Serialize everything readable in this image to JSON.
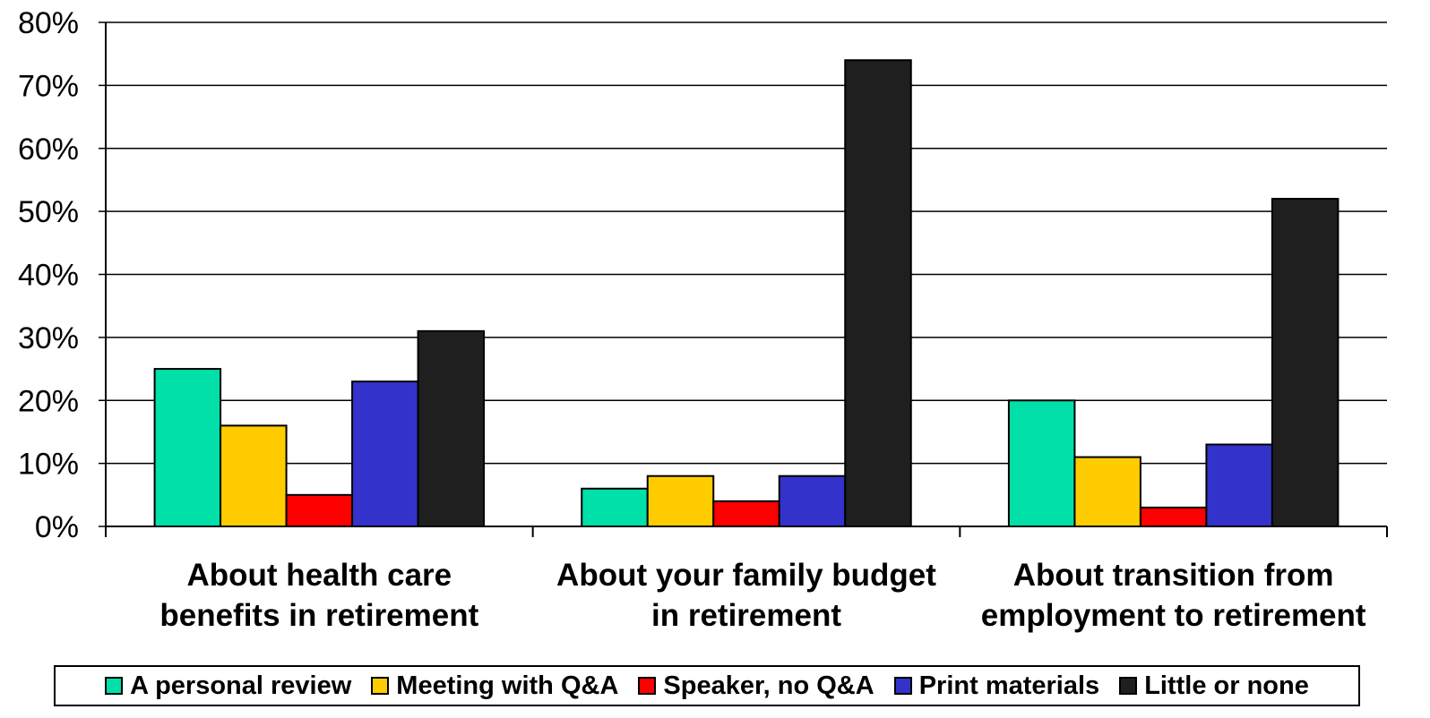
{
  "chart_data": {
    "type": "bar",
    "title": "",
    "xlabel": "",
    "ylabel": "",
    "ylim": [
      0,
      80
    ],
    "y_ticks": [
      "0%",
      "10%",
      "20%",
      "30%",
      "40%",
      "50%",
      "60%",
      "70%",
      "80%"
    ],
    "y_tick_values": [
      0,
      10,
      20,
      30,
      40,
      50,
      60,
      70,
      80
    ],
    "grid": true,
    "legend_position": "bottom",
    "categories": [
      [
        "About health care",
        "benefits in retirement"
      ],
      [
        "About your family budget",
        "in retirement"
      ],
      [
        "About transition from",
        "employment to retirement"
      ]
    ],
    "series": [
      {
        "name": "A personal review",
        "color": "#00e0a8",
        "values": [
          25,
          6,
          20
        ]
      },
      {
        "name": "Meeting with Q&A",
        "color": "#ffcc00",
        "values": [
          16,
          8,
          11
        ]
      },
      {
        "name": "Speaker, no Q&A",
        "color": "#ff0000",
        "values": [
          5,
          4,
          3
        ]
      },
      {
        "name": "Print materials",
        "color": "#3333cc",
        "values": [
          23,
          8,
          13
        ]
      },
      {
        "name": "Little or none",
        "color": "#1f1f1f",
        "values": [
          31,
          74,
          52
        ]
      }
    ]
  }
}
